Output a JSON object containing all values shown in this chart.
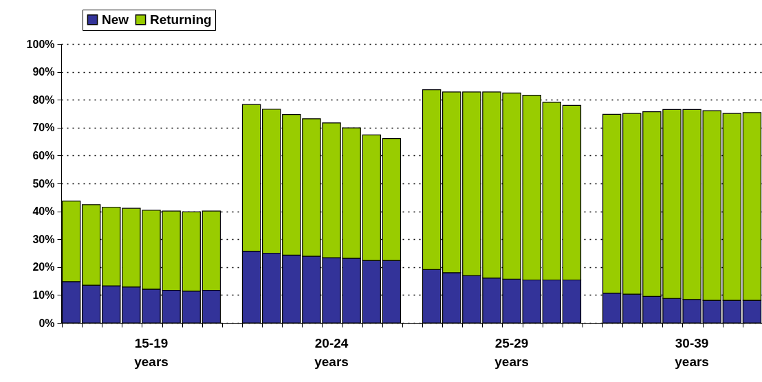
{
  "chart_data": {
    "type": "bar",
    "stacked": true,
    "categories": [
      null,
      null,
      null,
      null,
      "15-19 years",
      null,
      null,
      null,
      null,
      null,
      null,
      null,
      null,
      "20-24 years",
      null,
      null,
      null,
      null,
      null,
      null,
      null,
      null,
      "25-29 years",
      null,
      null,
      null,
      null,
      null,
      null,
      null,
      null,
      "30-39 years",
      null,
      null,
      null
    ],
    "series": [
      {
        "name": "New",
        "color": "#333399",
        "values": [
          14.8,
          13.5,
          13.3,
          12.9,
          12.1,
          11.7,
          11.4,
          11.7,
          null,
          25.7,
          25.0,
          24.3,
          23.9,
          23.4,
          23.2,
          22.4,
          22.4,
          null,
          19.1,
          18.0,
          17.0,
          16.1,
          15.7,
          15.4,
          15.4,
          15.4,
          null,
          10.7,
          10.3,
          9.5,
          8.8,
          8.4,
          8.1,
          8.1,
          8.1
        ]
      },
      {
        "name": "Returning",
        "color": "#99cc00",
        "values": [
          28.9,
          28.9,
          28.2,
          28.2,
          28.3,
          28.4,
          28.4,
          28.4,
          null,
          52.6,
          51.6,
          50.4,
          49.3,
          48.3,
          46.7,
          45.0,
          43.7,
          null,
          64.5,
          64.8,
          65.8,
          66.7,
          66.7,
          66.2,
          63.7,
          62.6,
          null,
          64.1,
          64.8,
          66.2,
          67.7,
          68.1,
          68.0,
          67.0,
          67.3
        ]
      }
    ],
    "ylim": [
      0,
      100
    ],
    "yticks": [
      {
        "value": 0,
        "label": "0%"
      },
      {
        "value": 10,
        "label": "10%"
      },
      {
        "value": 20,
        "label": "20%"
      },
      {
        "value": 30,
        "label": "30%"
      },
      {
        "value": 40,
        "label": "40%"
      },
      {
        "value": 50,
        "label": "50%"
      },
      {
        "value": 60,
        "label": "60%"
      },
      {
        "value": 70,
        "label": "70%"
      },
      {
        "value": 80,
        "label": "80%"
      },
      {
        "value": 90,
        "label": "90%"
      },
      {
        "value": 100,
        "label": "100%"
      }
    ],
    "grid": "y",
    "legend": "top left"
  }
}
